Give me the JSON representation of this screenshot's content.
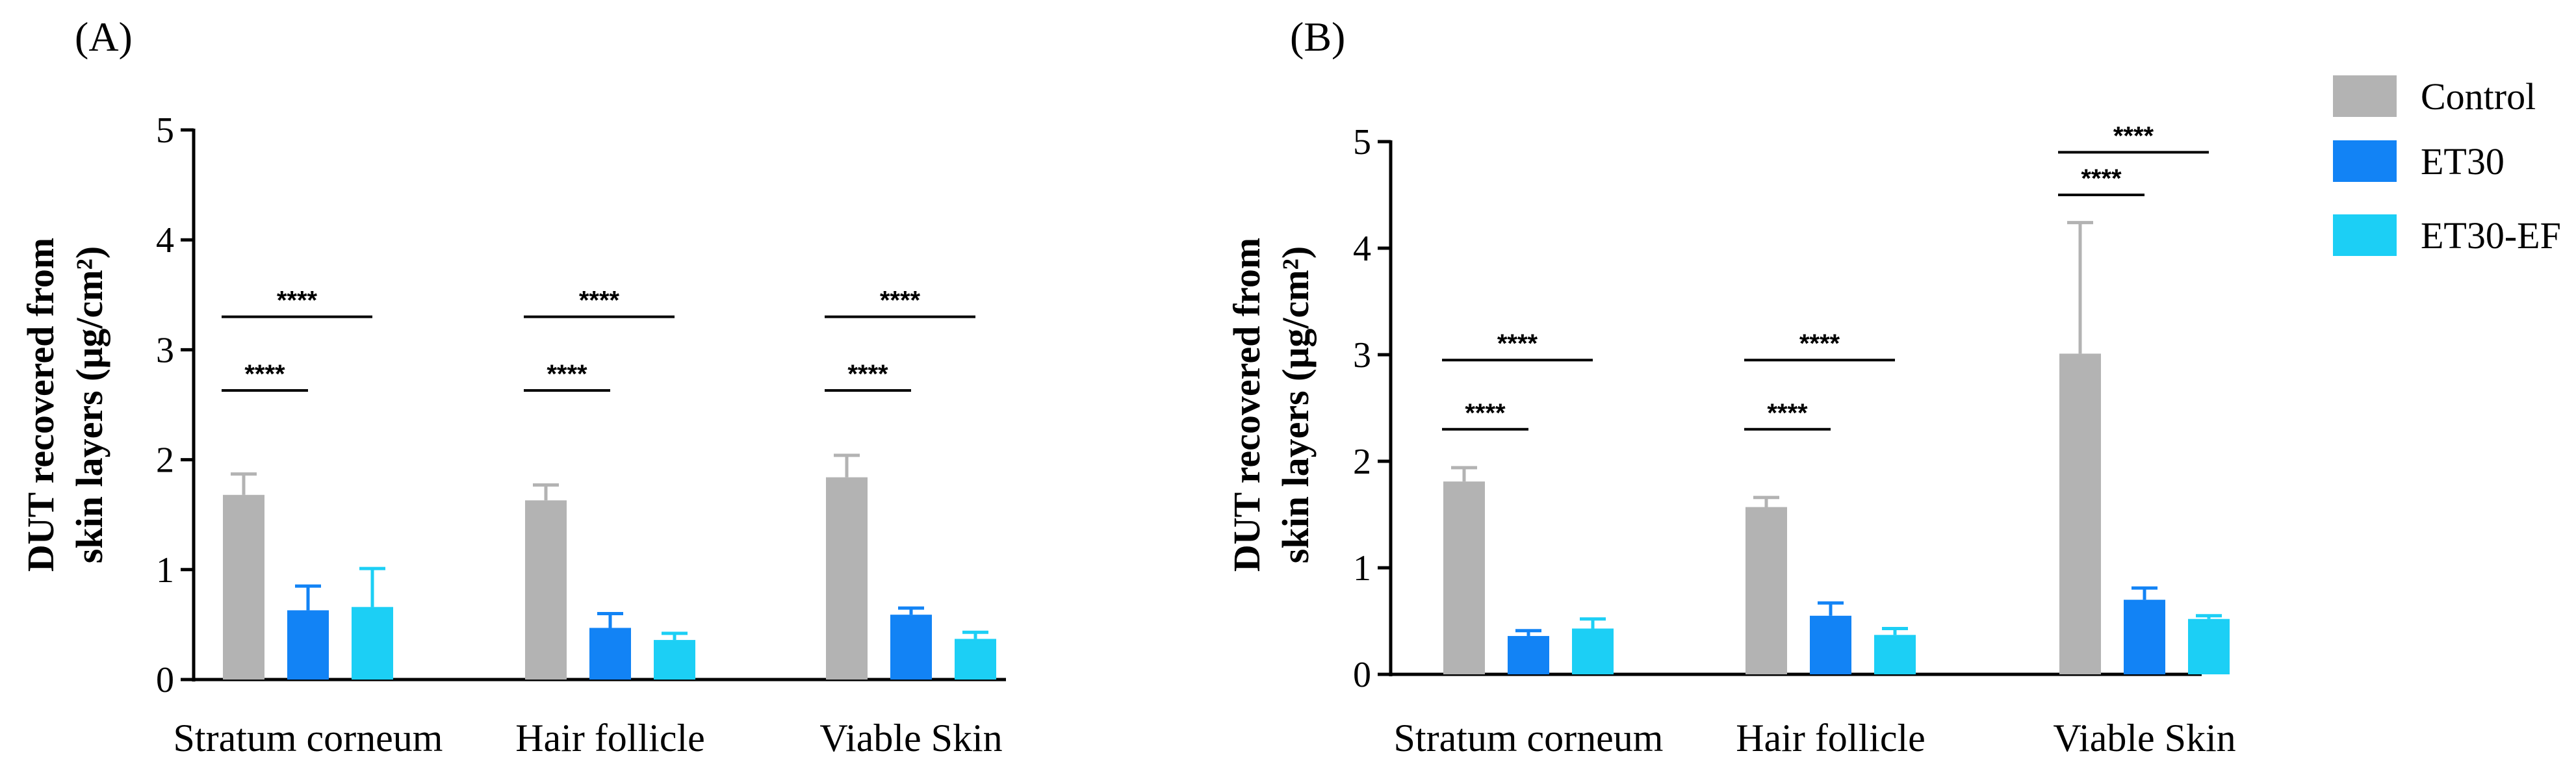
{
  "legend": [
    {
      "name": "Control",
      "color": "#b3b3b3"
    },
    {
      "name": "ET30",
      "color": "#1283f5"
    },
    {
      "name": "ET30-EF",
      "color": "#1ccff5"
    }
  ],
  "chart_data": [
    {
      "panel": "(A)",
      "type": "bar",
      "ylabel_line1": "DUT recovered from",
      "ylabel_line2": "skin layers (μg/cm²)",
      "ylim": [
        0,
        5
      ],
      "yticks": [
        0,
        1,
        2,
        3,
        4,
        5
      ],
      "categories": [
        "Stratum corneum",
        "Hair follicle",
        "Viable Skin"
      ],
      "series": [
        {
          "name": "Control",
          "values": [
            1.68,
            1.63,
            1.84
          ],
          "errors": [
            0.19,
            0.14,
            0.2
          ]
        },
        {
          "name": "ET30",
          "values": [
            0.63,
            0.47,
            0.59
          ],
          "errors": [
            0.22,
            0.13,
            0.06
          ]
        },
        {
          "name": "ET30-EF",
          "values": [
            0.66,
            0.36,
            0.37
          ],
          "errors": [
            0.35,
            0.06,
            0.06
          ]
        }
      ],
      "significance": [
        {
          "category": 0,
          "from": 0,
          "to": 1,
          "y": 2.63,
          "label": "****"
        },
        {
          "category": 0,
          "from": 0,
          "to": 2,
          "y": 3.3,
          "label": "****"
        },
        {
          "category": 1,
          "from": 0,
          "to": 1,
          "y": 2.63,
          "label": "****"
        },
        {
          "category": 1,
          "from": 0,
          "to": 2,
          "y": 3.3,
          "label": "****"
        },
        {
          "category": 2,
          "from": 0,
          "to": 1,
          "y": 2.63,
          "label": "****"
        },
        {
          "category": 2,
          "from": 0,
          "to": 2,
          "y": 3.3,
          "label": "****"
        }
      ]
    },
    {
      "panel": "(B)",
      "type": "bar",
      "ylabel_line1": "DUT recovered from",
      "ylabel_line2": "skin layers (μg/cm²)",
      "ylim": [
        0,
        5
      ],
      "yticks": [
        0,
        1,
        2,
        3,
        4,
        5
      ],
      "categories": [
        "Stratum corneum",
        "Hair follicle",
        "Viable Skin"
      ],
      "series": [
        {
          "name": "Control",
          "values": [
            1.81,
            1.57,
            3.01
          ],
          "errors": [
            0.13,
            0.09,
            1.23
          ]
        },
        {
          "name": "ET30",
          "values": [
            0.36,
            0.55,
            0.7
          ],
          "errors": [
            0.05,
            0.12,
            0.11
          ]
        },
        {
          "name": "ET30-EF",
          "values": [
            0.43,
            0.37,
            0.52
          ],
          "errors": [
            0.09,
            0.06,
            0.03
          ]
        }
      ],
      "significance": [
        {
          "category": 0,
          "from": 0,
          "to": 1,
          "y": 2.3,
          "label": "****"
        },
        {
          "category": 0,
          "from": 0,
          "to": 2,
          "y": 2.95,
          "label": "****"
        },
        {
          "category": 1,
          "from": 0,
          "to": 1,
          "y": 2.3,
          "label": "****"
        },
        {
          "category": 1,
          "from": 0,
          "to": 2,
          "y": 2.95,
          "label": "****"
        },
        {
          "category": 2,
          "from": 0,
          "to": 1,
          "y": 4.5,
          "label": "****"
        },
        {
          "category": 2,
          "from": 0,
          "to": 2,
          "y": 4.9,
          "label": "****"
        }
      ]
    }
  ]
}
